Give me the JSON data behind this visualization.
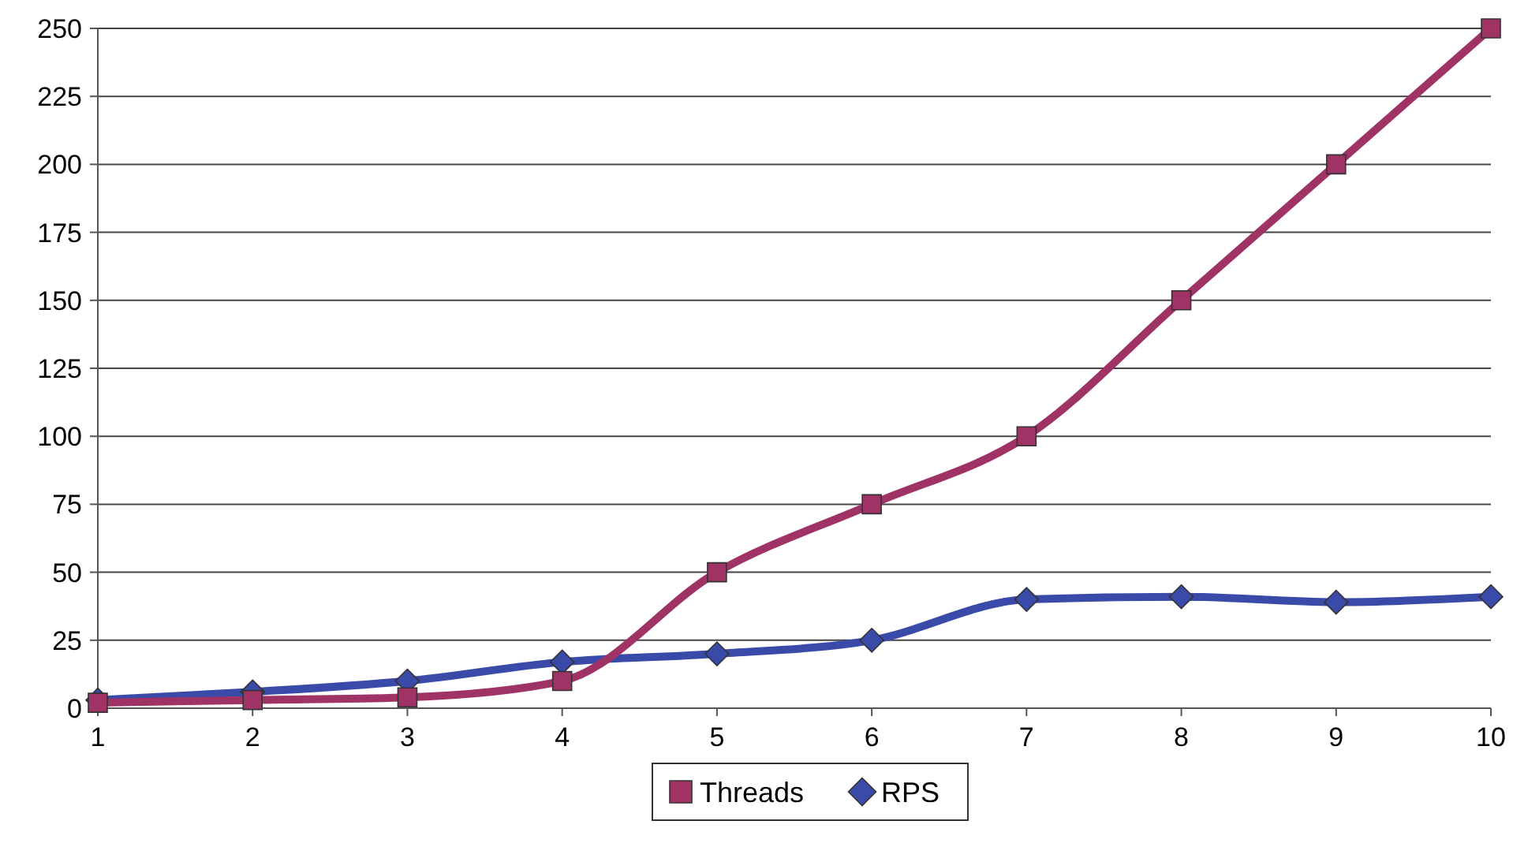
{
  "chart_data": {
    "type": "line",
    "x": [
      1,
      2,
      3,
      4,
      5,
      6,
      7,
      8,
      9,
      10
    ],
    "xlim": [
      1,
      10
    ],
    "xticks": [
      1,
      2,
      3,
      4,
      5,
      6,
      7,
      8,
      9,
      10
    ],
    "ylim": [
      0,
      250
    ],
    "yticks": [
      0,
      25,
      50,
      75,
      100,
      125,
      150,
      175,
      200,
      225,
      250
    ],
    "grid": "y",
    "legend": "bottom",
    "series": [
      {
        "name": "Threads",
        "color": "#a03366",
        "marker": "square",
        "values": [
          2,
          3,
          4,
          10,
          50,
          75,
          100,
          150,
          200,
          250
        ]
      },
      {
        "name": "RPS",
        "color": "#3a4aa8",
        "marker": "diamond",
        "values": [
          3,
          6,
          10,
          17,
          20,
          25,
          40,
          41,
          39,
          41
        ]
      }
    ]
  }
}
